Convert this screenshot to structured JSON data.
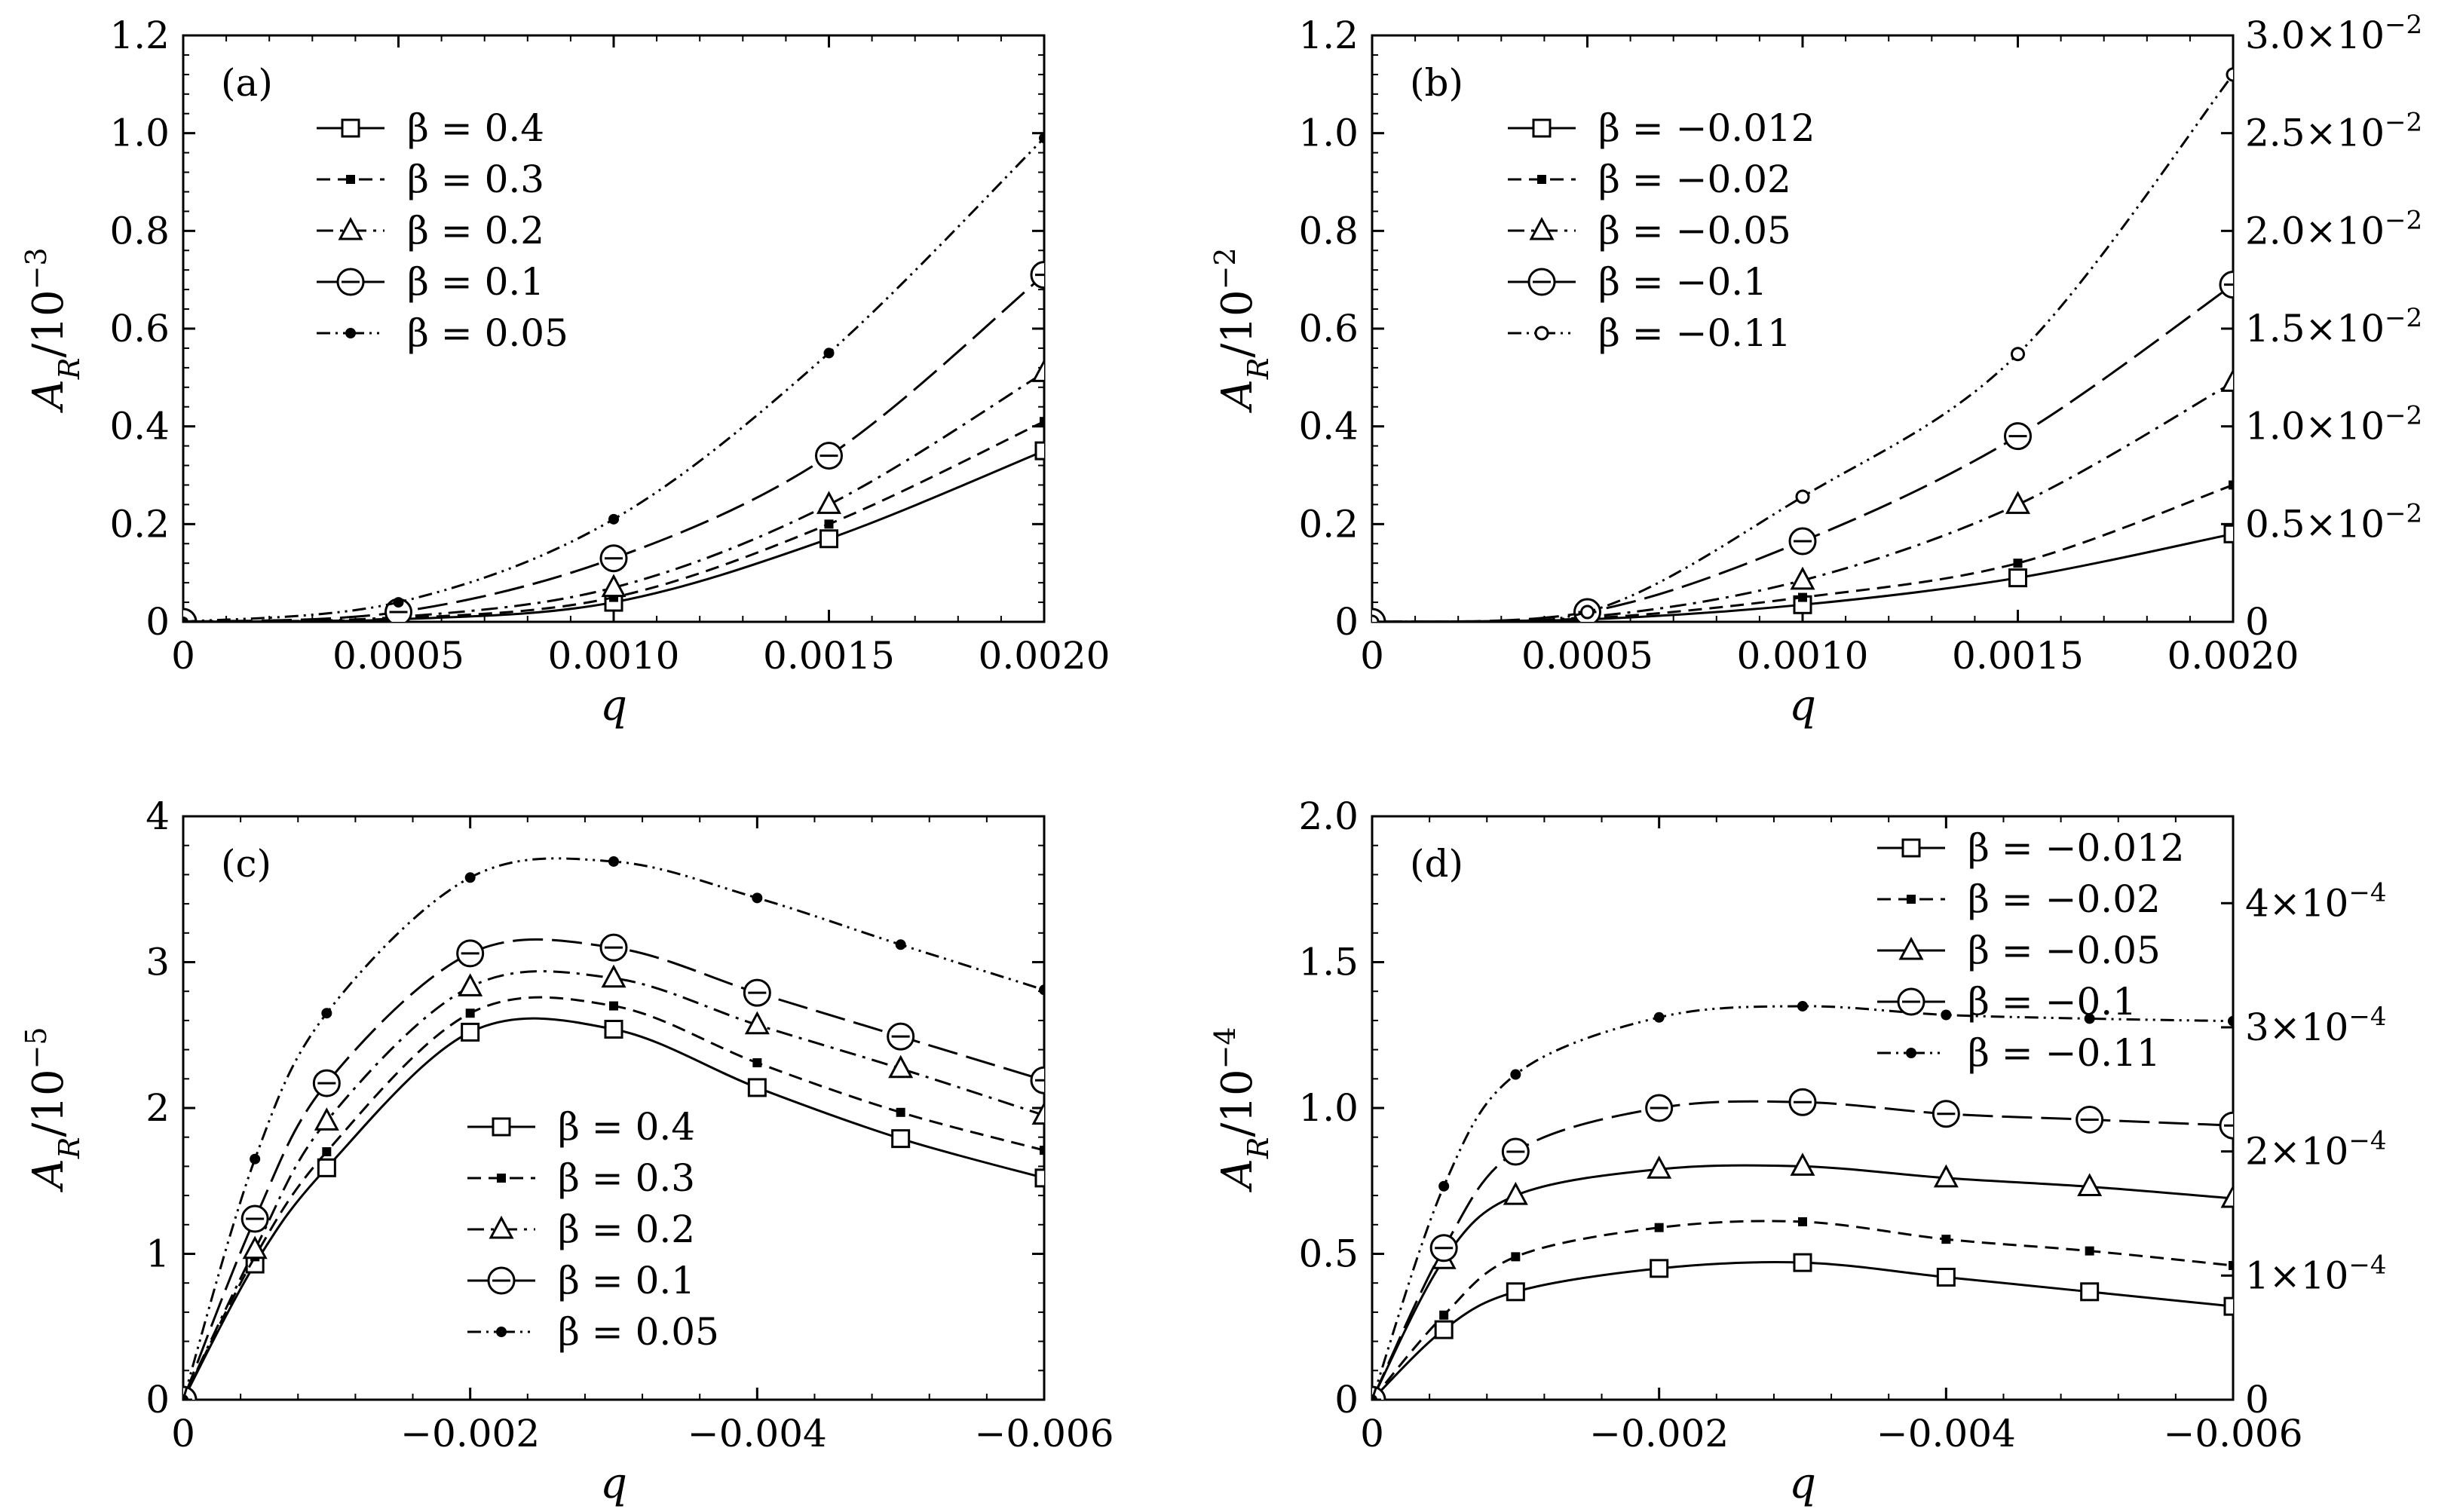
{
  "chart_data": [
    {
      "type": "line",
      "panel_label": "(a)",
      "xlabel": "q",
      "ylabel": "A_R/10^{-3}",
      "ylabel_parts": {
        "main": "A",
        "sub": "R",
        "rest": "/10",
        "sup": "−3"
      },
      "xlim": [
        0,
        0.002
      ],
      "ylim": [
        0,
        1.2
      ],
      "xticks": [
        0,
        0.0005,
        0.001,
        0.0015,
        0.002
      ],
      "xtick_labels": [
        "0",
        "0.0005",
        "0.0010",
        "0.0015",
        "0.0020"
      ],
      "yticks": [
        0,
        0.2,
        0.4,
        0.6,
        0.8,
        1.0,
        1.2
      ],
      "ytick_labels": [
        "0",
        "0.2",
        "0.4",
        "0.6",
        "0.8",
        "1.0",
        "1.2"
      ],
      "legend_position": "top-left",
      "x": [
        0,
        0.0005,
        0.001,
        0.0015,
        0.002
      ],
      "series": [
        {
          "name": "β = 0.4",
          "marker": "square",
          "dash": "solid",
          "values": [
            0,
            0.005,
            0.04,
            0.17,
            0.35
          ]
        },
        {
          "name": "β = 0.3",
          "marker": "small-square",
          "dash": "dashed",
          "values": [
            0,
            0.007,
            0.05,
            0.2,
            0.41
          ]
        },
        {
          "name": "β = 0.2",
          "marker": "triangle",
          "dash": "dashdot",
          "values": [
            0,
            0.01,
            0.07,
            0.24,
            0.51
          ]
        },
        {
          "name": "β = 0.1",
          "marker": "circle-bar",
          "dash": "longdash",
          "values": [
            0,
            0.02,
            0.13,
            0.34,
            0.71
          ]
        },
        {
          "name": "β = 0.05",
          "marker": "dot",
          "dash": "dashdotdot",
          "values": [
            0,
            0.04,
            0.21,
            0.55,
            0.99
          ]
        }
      ]
    },
    {
      "type": "line",
      "panel_label": "(b)",
      "xlabel": "q",
      "ylabel": "A_R/10^{-2}",
      "ylabel_parts": {
        "main": "A",
        "sub": "R",
        "rest": "/10",
        "sup": "−2"
      },
      "xlim": [
        0,
        0.002
      ],
      "ylim": [
        0,
        1.2
      ],
      "xticks": [
        0,
        0.0005,
        0.001,
        0.0015,
        0.002
      ],
      "xtick_labels": [
        "0",
        "0.0005",
        "0.0010",
        "0.0015",
        "0.0020"
      ],
      "yticks": [
        0,
        0.2,
        0.4,
        0.6,
        0.8,
        1.0,
        1.2
      ],
      "ytick_labels": [
        "0",
        "0.2",
        "0.4",
        "0.6",
        "0.8",
        "1.0",
        "1.2"
      ],
      "right_axis": {
        "ylim": [
          0,
          0.03
        ],
        "ticks": [
          0,
          0.005,
          0.01,
          0.015,
          0.02,
          0.025,
          0.03
        ],
        "tick_labels": [
          "0",
          "0.5×10",
          "1.0×10",
          "1.5×10",
          "2.0×10",
          "2.5×10",
          "3.0×10"
        ],
        "tick_exponents": [
          "",
          "−2",
          "−2",
          "−2",
          "−2",
          "−2",
          "−2"
        ],
        "series": "β = −0.11"
      },
      "legend_position": "top-left",
      "x": [
        0,
        0.0005,
        0.001,
        0.0015,
        0.002
      ],
      "series": [
        {
          "name": "β = −0.012",
          "marker": "square",
          "dash": "solid",
          "values": [
            0,
            0.005,
            0.035,
            0.09,
            0.18
          ]
        },
        {
          "name": "β = −0.02",
          "marker": "small-square",
          "dash": "dashed",
          "values": [
            0,
            0.007,
            0.05,
            0.12,
            0.28
          ]
        },
        {
          "name": "β = −0.05",
          "marker": "triangle",
          "dash": "dashdot",
          "values": [
            0,
            0.01,
            0.085,
            0.24,
            0.49
          ]
        },
        {
          "name": "β = −0.1",
          "marker": "circle-bar",
          "dash": "longdash",
          "values": [
            0,
            0.02,
            0.165,
            0.38,
            0.69
          ]
        },
        {
          "name": "β = −0.11",
          "marker": "open-dot",
          "dash": "dashdotdot",
          "axis": "right",
          "values": [
            0,
            0.0005,
            0.0064,
            0.0137,
            0.028
          ]
        }
      ]
    },
    {
      "type": "line",
      "panel_label": "(c)",
      "xlabel": "q",
      "ylabel": "A_R/10^{-5}",
      "ylabel_parts": {
        "main": "A",
        "sub": "R",
        "rest": "/10",
        "sup": "−5"
      },
      "xlim": [
        0,
        -0.006
      ],
      "ylim": [
        0,
        4
      ],
      "xticks": [
        0,
        -0.002,
        -0.004,
        -0.006
      ],
      "xtick_labels": [
        "0",
        "−0.002",
        "−0.004",
        "−0.006"
      ],
      "yticks": [
        0,
        1,
        2,
        3,
        4
      ],
      "ytick_labels": [
        "0",
        "1",
        "2",
        "3",
        "4"
      ],
      "legend_position": "lower-center",
      "x": [
        0,
        -0.0005,
        -0.001,
        -0.002,
        -0.003,
        -0.004,
        -0.005,
        -0.006
      ],
      "series": [
        {
          "name": "β = 0.4",
          "marker": "square",
          "dash": "solid",
          "values": [
            0,
            0.93,
            1.59,
            2.52,
            2.54,
            2.14,
            1.79,
            1.52
          ]
        },
        {
          "name": "β = 0.3",
          "marker": "small-square",
          "dash": "dashed",
          "values": [
            0,
            0.98,
            1.7,
            2.65,
            2.7,
            2.31,
            1.97,
            1.71
          ]
        },
        {
          "name": "β = 0.2",
          "marker": "triangle",
          "dash": "dashdot",
          "values": [
            0,
            1.03,
            1.91,
            2.83,
            2.89,
            2.57,
            2.27,
            1.95
          ]
        },
        {
          "name": "β = 0.1",
          "marker": "circle-bar",
          "dash": "longdash",
          "values": [
            0,
            1.24,
            2.17,
            3.06,
            3.1,
            2.79,
            2.49,
            2.19
          ]
        },
        {
          "name": "β = 0.05",
          "marker": "dot",
          "dash": "dashdotdot",
          "values": [
            0,
            1.65,
            2.65,
            3.58,
            3.69,
            3.44,
            3.12,
            2.81
          ]
        }
      ]
    },
    {
      "type": "line",
      "panel_label": "(d)",
      "xlabel": "q",
      "ylabel": "A_R/10^{-4}",
      "ylabel_parts": {
        "main": "A",
        "sub": "R",
        "rest": "/10",
        "sup": "−4"
      },
      "xlim": [
        0,
        -0.006
      ],
      "ylim": [
        0,
        2.0
      ],
      "xticks": [
        0,
        -0.002,
        -0.004,
        -0.006
      ],
      "xtick_labels": [
        "0",
        "−0.002",
        "−0.004",
        "−0.006"
      ],
      "yticks": [
        0,
        0.5,
        1.0,
        1.5,
        2.0
      ],
      "ytick_labels": [
        "0",
        "0.5",
        "1.0",
        "1.5",
        "2.0"
      ],
      "right_axis": {
        "ylim": [
          0,
          0.00047
        ],
        "ticks": [
          0,
          0.0001,
          0.0002,
          0.0003,
          0.0004
        ],
        "tick_labels": [
          "0",
          "1×10",
          "2×10",
          "3×10",
          "4×10"
        ],
        "tick_exponents": [
          "",
          "−4",
          "−4",
          "−4",
          "−4"
        ],
        "series": "β = −0.11"
      },
      "legend_position": "top-right",
      "x": [
        0,
        -0.0005,
        -0.001,
        -0.002,
        -0.003,
        -0.004,
        -0.005,
        -0.006
      ],
      "series": [
        {
          "name": "β = −0.012",
          "marker": "square",
          "dash": "solid",
          "values": [
            0,
            0.24,
            0.37,
            0.45,
            0.47,
            0.42,
            0.37,
            0.32
          ]
        },
        {
          "name": "β = −0.02",
          "marker": "small-square",
          "dash": "dashed",
          "values": [
            0,
            0.29,
            0.49,
            0.59,
            0.61,
            0.55,
            0.51,
            0.46
          ]
        },
        {
          "name": "β = −0.05",
          "marker": "triangle",
          "dash": "solid",
          "values": [
            0,
            0.48,
            0.7,
            0.79,
            0.8,
            0.76,
            0.73,
            0.69
          ]
        },
        {
          "name": "β = −0.1",
          "marker": "circle-bar",
          "dash": "longdash",
          "values": [
            0,
            0.52,
            0.85,
            1.0,
            1.02,
            0.98,
            0.96,
            0.94
          ]
        },
        {
          "name": "β = −0.11",
          "marker": "dot",
          "dash": "dashdotdot",
          "axis": "right",
          "values": [
            0,
            0.000172,
            0.000262,
            0.000308,
            0.000317,
            0.00031,
            0.000307,
            0.000305
          ]
        }
      ]
    }
  ]
}
